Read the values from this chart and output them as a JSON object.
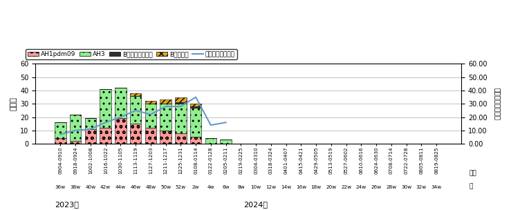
{
  "weeks": [
    "36w",
    "38w",
    "40w",
    "42w",
    "44w",
    "46w",
    "48w",
    "50w",
    "52w",
    "2w",
    "4w",
    "6w",
    "8w",
    "10w",
    "12w",
    "14w",
    "16w",
    "18w",
    "20w",
    "22w",
    "24w",
    "26w",
    "28w",
    "30w",
    "32w",
    "34w"
  ],
  "dates": [
    "0904-0910",
    "0918-0924",
    "1002-1008",
    "1016-1022",
    "1030-1105",
    "1113-1119",
    "1127-1203",
    "1211-1217",
    "1225-1231",
    "0108-0114",
    "0122-0128",
    "0205-0211",
    "0219-0225",
    "0304-0310",
    "0318-0324",
    "0401-0407",
    "0415-0421",
    "0429-0505",
    "0513-0519",
    "0527-0602",
    "0610-0616",
    "0624-0630",
    "0708-0714",
    "0722-0728",
    "0805-0811",
    "0819-0825"
  ],
  "AH1pdm09": [
    4,
    2,
    11,
    12,
    19,
    15,
    12,
    10,
    8,
    5,
    0,
    0,
    0,
    0,
    0,
    0,
    0,
    0,
    0,
    0,
    0,
    0,
    0,
    0,
    0,
    0
  ],
  "AH3": [
    12,
    20,
    8,
    29,
    23,
    21,
    18,
    20,
    22,
    22,
    4,
    3,
    0,
    0,
    0,
    0,
    0,
    0,
    0,
    0,
    0,
    0,
    0,
    0,
    0,
    0
  ],
  "B_victoria": [
    0,
    0,
    0,
    0,
    0,
    0,
    0,
    0,
    1,
    1,
    0,
    0,
    0,
    0,
    0,
    0,
    0,
    0,
    0,
    0,
    0,
    0,
    0,
    0,
    0,
    0
  ],
  "B_yamagata": [
    0,
    0,
    0,
    0,
    0,
    2,
    2,
    3,
    4,
    2,
    0,
    0,
    0,
    0,
    0,
    0,
    0,
    0,
    0,
    0,
    0,
    0,
    0,
    0,
    0,
    0
  ],
  "line_values": [
    7,
    10,
    11,
    16,
    20,
    25,
    22,
    28,
    28,
    35,
    14,
    16,
    null,
    null,
    null,
    null,
    null,
    null,
    null,
    null,
    null,
    null,
    null,
    null,
    null,
    null
  ],
  "ylabel_left": "検出数",
  "ylabel_right": "定点当たり報告数",
  "xlabel": "月日",
  "xlabel2": "週",
  "year_2023": "2023年",
  "year_2024": "2024年",
  "ylim_left": [
    0,
    60
  ],
  "ylim_right": [
    0,
    60
  ],
  "yticks_left": [
    0,
    10,
    20,
    30,
    40,
    50,
    60
  ],
  "yticks_right_labels": [
    "0.00",
    "10.00",
    "20.00",
    "30.00",
    "40.00",
    "50.00",
    "60.00"
  ],
  "color_AH1": "#FF9999",
  "color_AH3": "#90EE90",
  "color_Bvic": "#2F2F2F",
  "color_Byam": "#DAA520",
  "color_line": "#6699CC",
  "legend_labels": [
    "AH1pdm09",
    "AH3",
    "Bビクトリア系統",
    "B山形系統",
    "定点当たり報告数"
  ],
  "fig_width": 7.39,
  "fig_height": 3.04,
  "dpi": 100
}
